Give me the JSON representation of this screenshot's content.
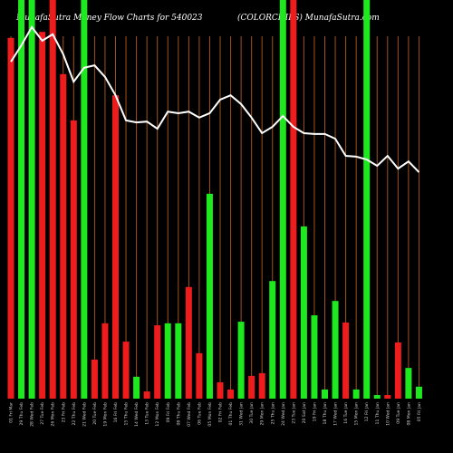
{
  "chart_data": {
    "type": "bar",
    "title": "MunafaSutra  Money Flow  Charts for 540023",
    "subtitle": "(COLORCHIPS) MunafaSutra.com",
    "categories": [
      "01 Fri Mar",
      "29 Thu Feb",
      "28 Wed Feb",
      "27 Tue Feb",
      "26 Mon Feb",
      "23 Fri Feb",
      "22 Thu Feb",
      "21 Wed Feb",
      "20 Tue Feb",
      "19 Mon Feb",
      "16 Fri Feb",
      "15 Thu Feb",
      "14 Wed Feb",
      "13 Tue Feb",
      "12 Mon Feb",
      "09 Fri Feb",
      "08 Thu Feb",
      "07 Wed Feb",
      "06 Tue Feb",
      "05 Mon Feb",
      "02 Fri Feb",
      "01 Thu Feb",
      "31 Wed Jan",
      "30 Tue Jan",
      "29 Mon Jan",
      "25 Thu Jan",
      "24 Wed Jan",
      "23 Tue Jan",
      "20 Sat Jan",
      "19 Fri Jan",
      "18 Thu Jan",
      "17 Wed Jan",
      "16 Tue Jan",
      "15 Mon Jan",
      "12 Fri Jan",
      "11 Thu Jan",
      "10 Wed Jan",
      "09 Tue Jan",
      "08 Mon Jan",
      "05 Fri Jan"
    ],
    "series": [
      {
        "name": "Money Flow",
        "values": [
          90.5,
          100,
          100,
          92,
          100,
          81.4,
          69.8,
          100,
          9.8,
          18.9,
          76.1,
          14.3,
          5.5,
          1.8,
          18.4,
          18.9,
          18.9,
          28,
          11.4,
          51.4,
          4.1,
          2.3,
          19.3,
          5.7,
          6.4,
          29.5,
          100,
          100,
          43.2,
          20.9,
          2.3,
          24.5,
          19.1,
          2.3,
          100,
          0.9,
          0.9,
          14.1,
          7.7,
          3
        ],
        "colors": [
          "#ee1c1c",
          "#1ee81e",
          "#1ee81e",
          "#ee1c1c",
          "#ee1c1c",
          "#ee1c1c",
          "#ee1c1c",
          "#1ee81e",
          "#ee1c1c",
          "#ee1c1c",
          "#ee1c1c",
          "#ee1c1c",
          "#1ee81e",
          "#ee1c1c",
          "#ee1c1c",
          "#1ee81e",
          "#1ee81e",
          "#ee1c1c",
          "#ee1c1c",
          "#1ee81e",
          "#ee1c1c",
          "#ee1c1c",
          "#1ee81e",
          "#ee1c1c",
          "#ee1c1c",
          "#1ee81e",
          "#1ee81e",
          "#ee1c1c",
          "#1ee81e",
          "#1ee81e",
          "#1ee81e",
          "#1ee81e",
          "#ee1c1c",
          "#1ee81e",
          "#1ee81e",
          "#1ee81e",
          "#ee1c1c",
          "#ee1c1c",
          "#1ee81e",
          "#1ee81e"
        ]
      },
      {
        "name": "Price",
        "type": "line",
        "color": "#ffffff",
        "values": [
          84.5,
          88.6,
          93.2,
          89.8,
          91.4,
          86.4,
          79.5,
          83,
          83.6,
          80.7,
          76.1,
          69.8,
          69.3,
          69.5,
          67.7,
          72,
          71.6,
          72,
          70.5,
          71.6,
          75,
          76.1,
          73.9,
          70.5,
          66.6,
          68.2,
          70.9,
          68.2,
          66.6,
          66.4,
          66.4,
          65.2,
          60.9,
          60.7,
          60,
          58.4,
          60.9,
          57.7,
          59.5,
          56.8
        ]
      }
    ],
    "ylim": [
      0,
      100
    ],
    "grid": true,
    "grid_color": "#a0521e"
  }
}
